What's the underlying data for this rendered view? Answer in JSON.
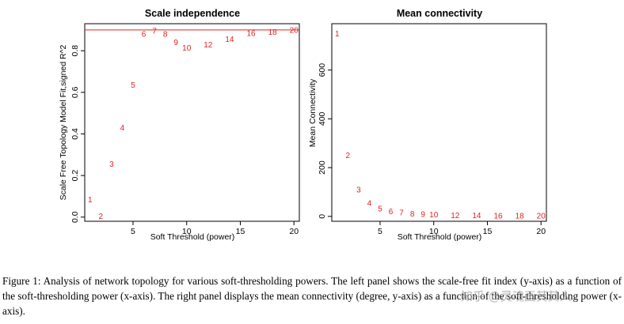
{
  "chart_data": [
    {
      "type": "scatter",
      "title": "Scale independence",
      "xlabel": "Soft Threshold (power)",
      "ylabel": "Scale Free Topology Model Fit,signed R^2",
      "xlim": [
        0.5,
        20.5
      ],
      "ylim": [
        -0.02,
        0.93
      ],
      "xticks": [
        5,
        10,
        15,
        20
      ],
      "yticks": [
        0.0,
        0.2,
        0.4,
        0.6,
        0.8
      ],
      "ytick_labels": [
        "0.0",
        "0.2",
        "0.4",
        "0.6",
        "0.8"
      ],
      "hline": 0.9,
      "hline_color": "#e0211e",
      "point_color": "#e0211e",
      "x": [
        1,
        2,
        3,
        4,
        5,
        6,
        7,
        8,
        9,
        10,
        12,
        14,
        16,
        18,
        20
      ],
      "y": [
        0.085,
        0.005,
        0.255,
        0.43,
        0.635,
        0.88,
        0.895,
        0.88,
        0.84,
        0.815,
        0.83,
        0.855,
        0.885,
        0.89,
        0.9
      ],
      "labels": [
        "1",
        "2",
        "3",
        "4",
        "5",
        "6",
        "7",
        "8",
        "9",
        "10",
        "12",
        "14",
        "16",
        "18",
        "20"
      ]
    },
    {
      "type": "scatter",
      "title": "Mean connectivity",
      "xlabel": "Soft Threshold (power)",
      "ylabel": "Mean Connectivity",
      "xlim": [
        0.5,
        20.5
      ],
      "ylim": [
        -20,
        790
      ],
      "xticks": [
        5,
        10,
        15,
        20
      ],
      "yticks": [
        0,
        200,
        400,
        600
      ],
      "ytick_labels": [
        "0",
        "200",
        "400",
        "600"
      ],
      "point_color": "#e0211e",
      "x": [
        1,
        2,
        3,
        4,
        5,
        6,
        7,
        8,
        9,
        10,
        12,
        14,
        16,
        18,
        20
      ],
      "y": [
        750,
        250,
        110,
        55,
        32,
        20,
        15,
        11,
        9,
        7,
        5,
        4,
        3,
        2.5,
        2
      ],
      "labels": [
        "1",
        "2",
        "3",
        "4",
        "5",
        "6",
        "7",
        "8",
        "9",
        "10",
        "12",
        "14",
        "16",
        "18",
        "20"
      ]
    }
  ],
  "caption": {
    "text": "Figure 1: Analysis of network topology for various soft-thresholding powers. The left panel shows the scale-free fit index (y-axis) as a function of the soft-thresholding power (x-axis). The right panel displays the mean connectivity (degree, y-axis) as a function of the soft-thresholding power (x-axis)."
  },
  "watermark": {
    "text": "知乎 @灵魂画其其人"
  }
}
